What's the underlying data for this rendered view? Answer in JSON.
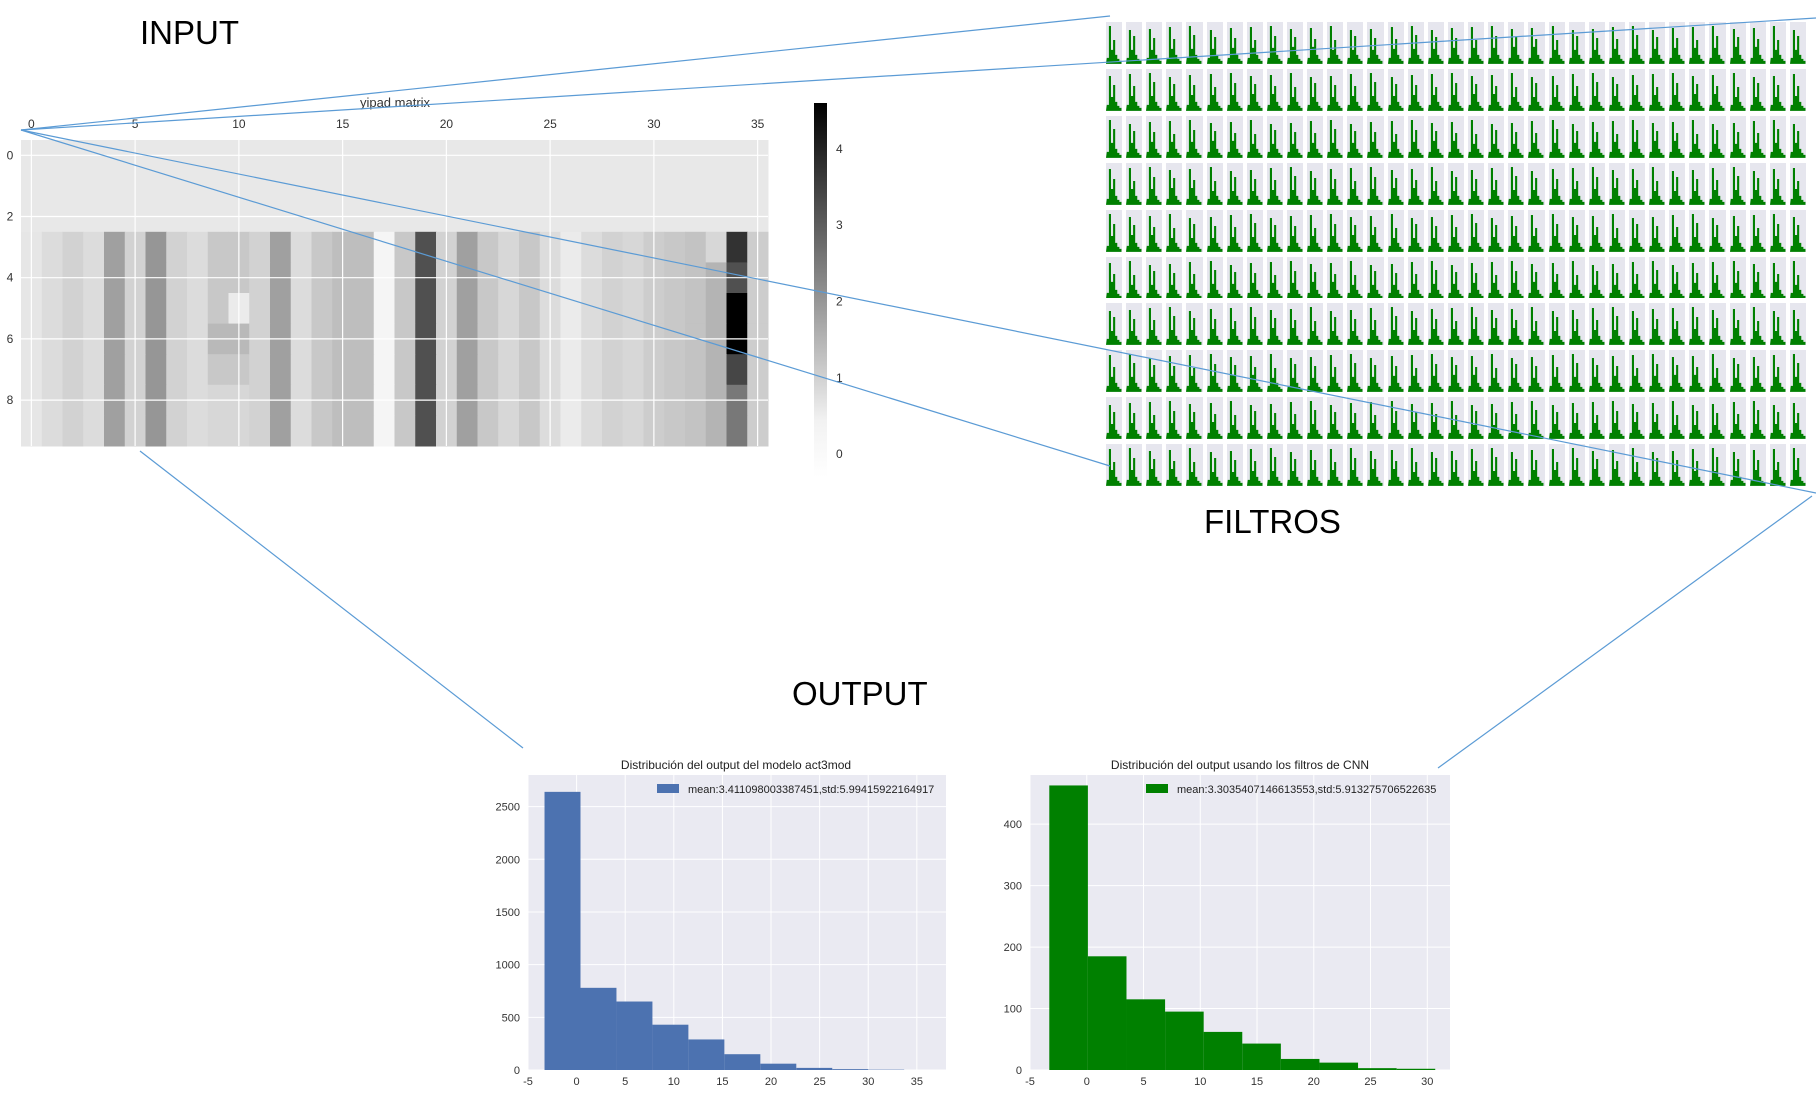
{
  "labels": {
    "input": "INPUT",
    "filters": "FILTROS",
    "output": "OUTPUT"
  },
  "colors": {
    "blue_bars": "#4c72b0",
    "green_bars": "#008000",
    "plot_bg": "#eaeaf2",
    "connector_lines": "#5b9bd5"
  },
  "chart_data": [
    {
      "type": "heatmap",
      "title": "yipad matrix",
      "x_ticks": [
        "0",
        "5",
        "10",
        "15",
        "20",
        "25",
        "30",
        "35"
      ],
      "y_ticks": [
        "0",
        "2",
        "4",
        "6",
        "8"
      ],
      "n_rows": 10,
      "n_cols": 36,
      "colormap": "greys",
      "colorbar_ticks": [
        "0",
        "1",
        "2",
        "3",
        "4"
      ],
      "values": [
        [
          0,
          0,
          0,
          0,
          0,
          0,
          0,
          0,
          0,
          0,
          0,
          0,
          0,
          0,
          0,
          0,
          0,
          0,
          0,
          0,
          0,
          0,
          0,
          0,
          0,
          0,
          0,
          0,
          0,
          0,
          0,
          0,
          0,
          0,
          0,
          0
        ],
        [
          0,
          0,
          0,
          0,
          0,
          0,
          0,
          0,
          0,
          0,
          0,
          0,
          0,
          0,
          0,
          0,
          0,
          0,
          0,
          0,
          0,
          0,
          0,
          0,
          0,
          0,
          0,
          0,
          0,
          0,
          0,
          0,
          0,
          0,
          0,
          0
        ],
        [
          0,
          0,
          0,
          0,
          0,
          0,
          0,
          0,
          0,
          0,
          0,
          0,
          0,
          0,
          0,
          0,
          0,
          0,
          0,
          0,
          0,
          0,
          0,
          0,
          0,
          0,
          0,
          0,
          0,
          0,
          0,
          0,
          0,
          0,
          0,
          0
        ],
        [
          0,
          0.2,
          0.4,
          0.2,
          1.4,
          0.4,
          1.6,
          0.4,
          0.2,
          0.6,
          0.6,
          0.4,
          1.4,
          0.2,
          0.6,
          0.8,
          0.8,
          -0.3,
          0.6,
          3.0,
          0.4,
          1.4,
          0.6,
          0.3,
          0.6,
          0.2,
          -0.1,
          0.2,
          0.4,
          0.3,
          0.5,
          0.6,
          0.7,
          0.3,
          3.6,
          0.5
        ],
        [
          0,
          0.2,
          0.4,
          0.2,
          1.4,
          0.4,
          1.6,
          0.4,
          0.2,
          0.6,
          0.6,
          0.4,
          1.4,
          0.2,
          0.6,
          0.8,
          0.8,
          -0.3,
          0.6,
          3.0,
          0.4,
          1.4,
          0.6,
          0.3,
          0.6,
          0.2,
          -0.1,
          0.2,
          0.4,
          0.3,
          0.5,
          0.6,
          0.7,
          1.0,
          3.0,
          0.5
        ],
        [
          0,
          0.2,
          0.4,
          0.2,
          1.4,
          0.4,
          1.6,
          0.4,
          0.2,
          0.6,
          -0.1,
          0.4,
          1.4,
          0.2,
          0.6,
          0.8,
          0.8,
          -0.3,
          0.6,
          3.0,
          0.4,
          1.4,
          0.6,
          0.3,
          0.6,
          0.2,
          -0.1,
          0.2,
          0.4,
          0.3,
          0.5,
          0.6,
          0.7,
          1.0,
          4.6,
          0.5
        ],
        [
          0,
          0.2,
          0.4,
          0.2,
          1.4,
          0.4,
          1.6,
          0.4,
          0.2,
          0.9,
          0.9,
          0.4,
          1.4,
          0.2,
          0.6,
          0.8,
          0.8,
          -0.3,
          0.6,
          3.0,
          0.4,
          1.4,
          0.6,
          0.3,
          0.6,
          0.2,
          -0.1,
          0.2,
          0.4,
          0.3,
          0.5,
          0.6,
          0.7,
          1.0,
          4.6,
          0.5
        ],
        [
          0,
          0.2,
          0.4,
          0.2,
          1.4,
          0.4,
          1.6,
          0.4,
          0.2,
          0.6,
          0.6,
          0.4,
          1.4,
          0.2,
          0.6,
          0.8,
          0.8,
          -0.3,
          0.6,
          3.0,
          0.4,
          1.4,
          0.6,
          0.3,
          0.6,
          0.2,
          -0.1,
          0.2,
          0.4,
          0.3,
          0.5,
          0.6,
          0.7,
          1.0,
          3.2,
          0.5
        ],
        [
          0,
          0.2,
          0.4,
          0.2,
          1.4,
          0.4,
          1.6,
          0.4,
          0.2,
          0.3,
          0.3,
          0.4,
          1.4,
          0.2,
          0.6,
          0.8,
          0.8,
          -0.3,
          0.6,
          3.0,
          0.4,
          1.4,
          0.6,
          0.3,
          0.6,
          0.2,
          -0.1,
          0.2,
          0.4,
          0.3,
          0.5,
          0.6,
          0.7,
          1.0,
          2.2,
          0.5
        ],
        [
          0,
          0.2,
          0.4,
          0.2,
          1.4,
          0.4,
          1.6,
          0.4,
          0.2,
          0.3,
          0.3,
          0.4,
          1.4,
          0.2,
          0.6,
          0.8,
          0.8,
          -0.3,
          0.6,
          3.0,
          0.4,
          1.4,
          0.6,
          0.3,
          0.6,
          0.2,
          -0.1,
          0.2,
          0.4,
          0.3,
          0.5,
          0.6,
          0.7,
          1.0,
          2.2,
          0.5
        ]
      ]
    },
    {
      "type": "bar",
      "title": "Distribución del output del modelo act3mod",
      "legend": "mean:3.411098003387451,std:5.99415922164917",
      "legend_position": "top-right",
      "bin_edges": [
        -3.3,
        0.4,
        4.1,
        7.8,
        11.5,
        15.2,
        18.9,
        22.6,
        26.3,
        30.0,
        33.7
      ],
      "values": [
        2640,
        780,
        650,
        430,
        290,
        150,
        60,
        20,
        8,
        3
      ],
      "xlim": [
        -5,
        38
      ],
      "ylim": [
        0,
        2800
      ],
      "x_ticks": [
        "-5",
        "0",
        "5",
        "10",
        "15",
        "20",
        "25",
        "30",
        "35"
      ],
      "y_ticks": [
        "0",
        "500",
        "1000",
        "1500",
        "2000",
        "2500"
      ],
      "grid": true
    },
    {
      "type": "bar",
      "title": "Distribución del output usando los filtros de CNN",
      "legend": "mean:3.3035407146613553,std:5.913275706522635",
      "legend_position": "top-right",
      "bin_edges": [
        -3.3,
        0.1,
        3.5,
        6.9,
        10.3,
        13.7,
        17.1,
        20.5,
        23.9,
        27.3,
        30.7
      ],
      "values": [
        463,
        185,
        115,
        95,
        62,
        43,
        18,
        12,
        3,
        2
      ],
      "xlim": [
        -5,
        32
      ],
      "ylim": [
        0,
        480
      ],
      "x_ticks": [
        "-5",
        "0",
        "5",
        "10",
        "15",
        "20",
        "25",
        "30"
      ],
      "y_ticks": [
        "0",
        "100",
        "200",
        "300",
        "400"
      ],
      "grid": true
    }
  ]
}
